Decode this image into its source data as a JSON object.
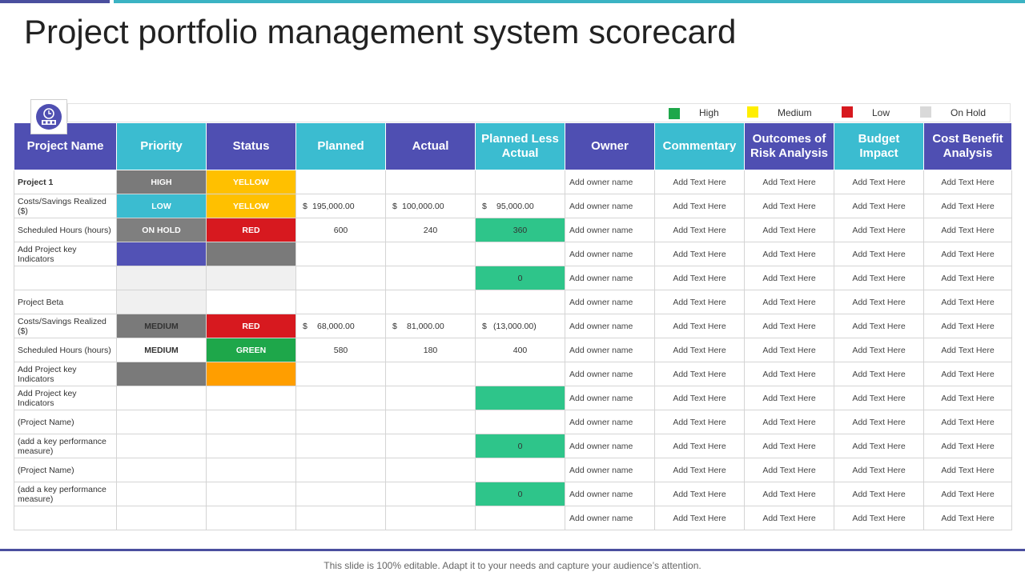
{
  "title": "Project portfolio management system scorecard",
  "footer": "This slide is 100% editable. Adapt it to your needs and capture your audience’s attention.",
  "legend": [
    {
      "label": "High",
      "color": "#1ea74a"
    },
    {
      "label": "Medium",
      "color": "#ffee00"
    },
    {
      "label": "Low",
      "color": "#d7191f"
    },
    {
      "label": "On Hold",
      "color": "#d9d9d9"
    }
  ],
  "headers": [
    "Project Name",
    "Priority",
    "Status",
    "Planned",
    "Actual",
    "Planned Less Actual",
    "Owner",
    "Commentary",
    "Outcomes of Risk Analysis",
    "Budget Impact",
    "Cost Benefit Analysis"
  ],
  "rows": [
    {
      "name": "Project 1",
      "priority": "HIGH",
      "status": "YELLOW",
      "planned": "",
      "actual": "",
      "pla": "",
      "owner": "Add owner name",
      "commentary": "Add Text Here",
      "risk": "Add Text Here",
      "budget": "Add Text Here",
      "cba": "Add Text Here"
    },
    {
      "name": "Costs/Savings Realized ($)",
      "priority": "LOW",
      "status": "YELLOW",
      "planned": "195,000.00",
      "actual": "100,000.00",
      "pla": "95,000.00",
      "owner": "Add owner name",
      "commentary": "Add Text Here",
      "risk": "Add Text Here",
      "budget": "Add Text Here",
      "cba": "Add Text Here"
    },
    {
      "name": "Scheduled Hours (hours)",
      "priority": "ON HOLD",
      "status": "RED",
      "planned": "600",
      "actual": "240",
      "pla": "360",
      "owner": "Add owner name",
      "commentary": "Add Text Here",
      "risk": "Add Text Here",
      "budget": "Add Text Here",
      "cba": "Add Text Here"
    },
    {
      "name": "Add Project key Indicators",
      "priority": "",
      "status": "",
      "planned": "",
      "actual": "",
      "pla": "",
      "owner": "Add owner name",
      "commentary": "Add Text Here",
      "risk": "Add Text Here",
      "budget": "Add Text Here",
      "cba": "Add Text Here"
    },
    {
      "name": "",
      "priority": "",
      "status": "",
      "planned": "",
      "actual": "",
      "pla": "0",
      "owner": "Add owner name",
      "commentary": "Add Text Here",
      "risk": "Add Text Here",
      "budget": "Add Text Here",
      "cba": "Add Text Here"
    },
    {
      "name": "Project Beta",
      "priority": "",
      "status": "",
      "planned": "",
      "actual": "",
      "pla": "",
      "owner": "Add owner name",
      "commentary": "Add Text Here",
      "risk": "Add Text Here",
      "budget": "Add Text Here",
      "cba": "Add Text Here"
    },
    {
      "name": "Costs/Savings Realized ($)",
      "priority": "MEDIUM",
      "status": "RED",
      "planned": "68,000.00",
      "actual": "81,000.00",
      "pla": "(13,000.00)",
      "owner": "Add owner name",
      "commentary": "Add Text Here",
      "risk": "Add Text Here",
      "budget": "Add Text Here",
      "cba": "Add Text Here"
    },
    {
      "name": "Scheduled Hours (hours)",
      "priority": "MEDIUM",
      "status": "GREEN",
      "planned": "580",
      "actual": "180",
      "pla": "400",
      "owner": "Add owner name",
      "commentary": "Add Text Here",
      "risk": "Add Text Here",
      "budget": "Add Text Here",
      "cba": "Add Text Here"
    },
    {
      "name": "Add Project key Indicators",
      "priority": "",
      "status": "",
      "planned": "",
      "actual": "",
      "pla": "",
      "owner": "Add owner name",
      "commentary": "Add Text Here",
      "risk": "Add Text Here",
      "budget": "Add Text Here",
      "cba": "Add Text Here"
    },
    {
      "name": "Add Project key Indicators",
      "priority": "",
      "status": "",
      "planned": "",
      "actual": "",
      "pla": "",
      "owner": "Add owner name",
      "commentary": "Add Text Here",
      "risk": "Add Text Here",
      "budget": "Add Text Here",
      "cba": "Add Text Here"
    },
    {
      "name": "(Project Name)",
      "priority": "",
      "status": "",
      "planned": "",
      "actual": "",
      "pla": "",
      "owner": "Add owner name",
      "commentary": "Add Text Here",
      "risk": "Add Text Here",
      "budget": "Add Text Here",
      "cba": "Add Text Here"
    },
    {
      "name": "(add a key performance measure)",
      "priority": "",
      "status": "",
      "planned": "",
      "actual": "",
      "pla": "0",
      "owner": "Add owner name",
      "commentary": "Add Text Here",
      "risk": "Add Text Here",
      "budget": "Add Text Here",
      "cba": "Add Text Here"
    },
    {
      "name": "(Project Name)",
      "priority": "",
      "status": "",
      "planned": "",
      "actual": "",
      "pla": "",
      "owner": "Add owner name",
      "commentary": "Add Text Here",
      "risk": "Add Text Here",
      "budget": "Add Text Here",
      "cba": "Add Text Here"
    },
    {
      "name": "(add a key performance measure)",
      "priority": "",
      "status": "",
      "planned": "",
      "actual": "",
      "pla": "0",
      "owner": "Add owner name",
      "commentary": "Add Text Here",
      "risk": "Add Text Here",
      "budget": "Add Text Here",
      "cba": "Add Text Here"
    },
    {
      "name": "",
      "priority": "",
      "status": "",
      "planned": "",
      "actual": "",
      "pla": "",
      "owner": "Add owner name",
      "commentary": "Add Text Here",
      "risk": "Add Text Here",
      "budget": "Add Text Here",
      "cba": "Add Text Here"
    }
  ]
}
